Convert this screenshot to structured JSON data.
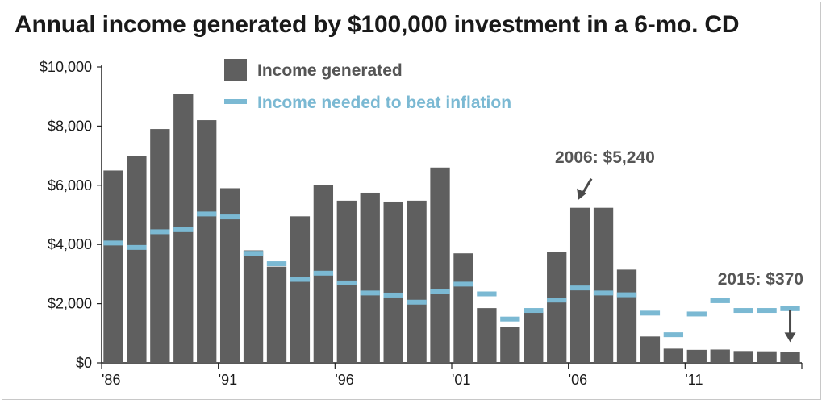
{
  "chart_data": {
    "type": "bar",
    "title": "Annual income generated by $100,000 investment in a 6-mo. CD",
    "x": [
      1986,
      1987,
      1988,
      1989,
      1990,
      1991,
      1992,
      1993,
      1994,
      1995,
      1996,
      1997,
      1998,
      1999,
      2000,
      2001,
      2002,
      2003,
      2004,
      2005,
      2006,
      2007,
      2008,
      2009,
      2010,
      2011,
      2012,
      2013,
      2014,
      2015
    ],
    "xtick_values": [
      1986,
      1991,
      1996,
      2001,
      2006,
      2011
    ],
    "xtick_labels": [
      "'86",
      "'91",
      "'96",
      "'01",
      "'06",
      "'11"
    ],
    "ylim": [
      0,
      10000
    ],
    "yticks": [
      0,
      2000,
      4000,
      6000,
      8000,
      10000
    ],
    "ytick_labels": [
      "$0",
      "$2,000",
      "$4,000",
      "$6,000",
      "$8,000",
      "$10,000"
    ],
    "series": [
      {
        "name": "Income generated",
        "color": "#5f5f5f",
        "values": [
          6500,
          7000,
          7900,
          9100,
          8200,
          5900,
          3800,
          3250,
          4950,
          6000,
          5480,
          5750,
          5450,
          5480,
          6600,
          3700,
          1850,
          1200,
          1730,
          3750,
          5240,
          5240,
          3150,
          890,
          480,
          440,
          450,
          400,
          390,
          370
        ]
      },
      {
        "name": "Income needed to beat inflation",
        "color": "#7bb9d3",
        "values": [
          4050,
          3900,
          4430,
          4500,
          5030,
          4930,
          3700,
          3350,
          2820,
          3030,
          2700,
          2360,
          2290,
          2050,
          2400,
          2660,
          2330,
          1480,
          1770,
          2120,
          2530,
          2360,
          2300,
          1680,
          950,
          1650,
          2100,
          1770,
          1770,
          1830
        ]
      }
    ],
    "legend_position": "top-left",
    "annotations": [
      {
        "text": "2006: $5,240",
        "year": 2006,
        "value": 5240
      },
      {
        "text": "2015: $370",
        "year": 2015,
        "value": 370
      }
    ]
  }
}
